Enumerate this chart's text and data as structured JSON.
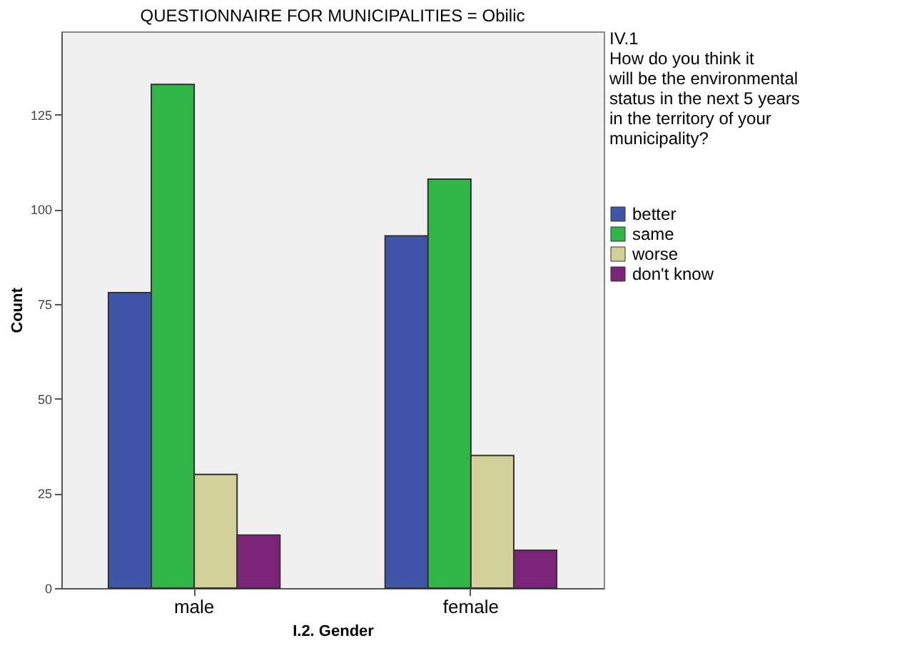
{
  "chart_data": {
    "type": "bar",
    "title": "QUESTIONNAIRE FOR MUNICIPALITIES = Obilic",
    "xlabel": "I.2. Gender",
    "ylabel": "Count",
    "legend_title": "IV.1\nHow do you think it\nwill be the environmental\nstatus in the next 5 years\nin the territory of your\nmunicipality?",
    "categories": [
      "male",
      "female"
    ],
    "series": [
      {
        "name": "better",
        "color": "#3e55a8",
        "values": [
          78,
          93
        ]
      },
      {
        "name": "same",
        "color": "#30b547",
        "values": [
          133,
          108
        ]
      },
      {
        "name": "worse",
        "color": "#d4d099",
        "values": [
          30,
          35
        ]
      },
      {
        "name": "don't know",
        "color": "#7b2479",
        "values": [
          14,
          10
        ]
      }
    ],
    "ylim": [
      0,
      147
    ],
    "yticks": [
      0,
      25,
      50,
      75,
      100,
      125
    ],
    "grid": false,
    "legend": "right"
  }
}
